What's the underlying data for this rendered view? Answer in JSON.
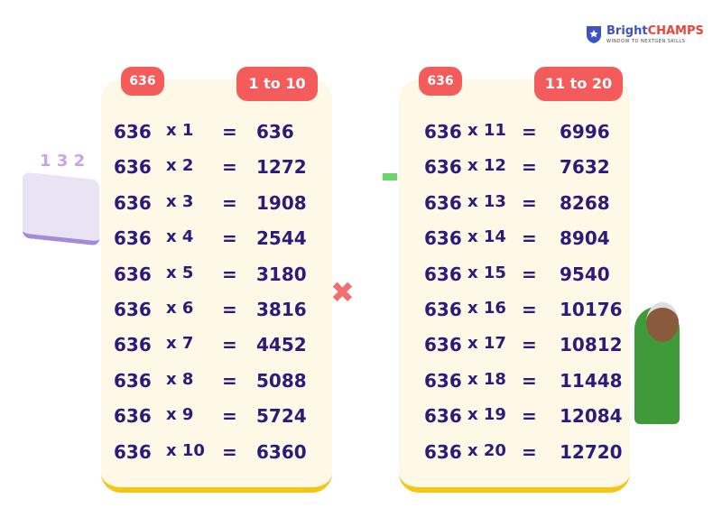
{
  "brand": {
    "name_part1": "Bright",
    "name_part2": "CHAMPS",
    "tagline": "WINDOW TO NEXTGEN SKILLS"
  },
  "tables": [
    {
      "number_tag": "636",
      "range_tag": "1 to 10",
      "rows": [
        {
          "base": "636",
          "mult": "x 1",
          "eq": "=",
          "result": "636"
        },
        {
          "base": "636",
          "mult": "x 2",
          "eq": "=",
          "result": "1272"
        },
        {
          "base": "636",
          "mult": "x 3",
          "eq": "=",
          "result": "1908"
        },
        {
          "base": "636",
          "mult": "x 4",
          "eq": "=",
          "result": "2544"
        },
        {
          "base": "636",
          "mult": "x 5",
          "eq": "=",
          "result": "3180"
        },
        {
          "base": "636",
          "mult": "x 6",
          "eq": "=",
          "result": "3816"
        },
        {
          "base": "636",
          "mult": "x 7",
          "eq": "=",
          "result": "4452"
        },
        {
          "base": "636",
          "mult": "x 8",
          "eq": "=",
          "result": "5088"
        },
        {
          "base": "636",
          "mult": "x 9",
          "eq": "=",
          "result": "5724"
        },
        {
          "base": "636",
          "mult": "x 10",
          "eq": "=",
          "result": "6360"
        }
      ]
    },
    {
      "number_tag": "636",
      "range_tag": "11 to 20",
      "rows": [
        {
          "base": "636",
          "mult": "x 11",
          "eq": "=",
          "result": "6996"
        },
        {
          "base": "636",
          "mult": "x 12",
          "eq": "=",
          "result": "7632"
        },
        {
          "base": "636",
          "mult": "x 13",
          "eq": "=",
          "result": "8268"
        },
        {
          "base": "636",
          "mult": "x 14",
          "eq": "=",
          "result": "8904"
        },
        {
          "base": "636",
          "mult": "x 15",
          "eq": "=",
          "result": "9540"
        },
        {
          "base": "636",
          "mult": "x 16",
          "eq": "=",
          "result": "10176"
        },
        {
          "base": "636",
          "mult": "x 17",
          "eq": "=",
          "result": "10812"
        },
        {
          "base": "636",
          "mult": "x 18",
          "eq": "=",
          "result": "11448"
        },
        {
          "base": "636",
          "mult": "x 19",
          "eq": "=",
          "result": "12084"
        },
        {
          "base": "636",
          "mult": "x 20",
          "eq": "=",
          "result": "12720"
        }
      ]
    }
  ]
}
